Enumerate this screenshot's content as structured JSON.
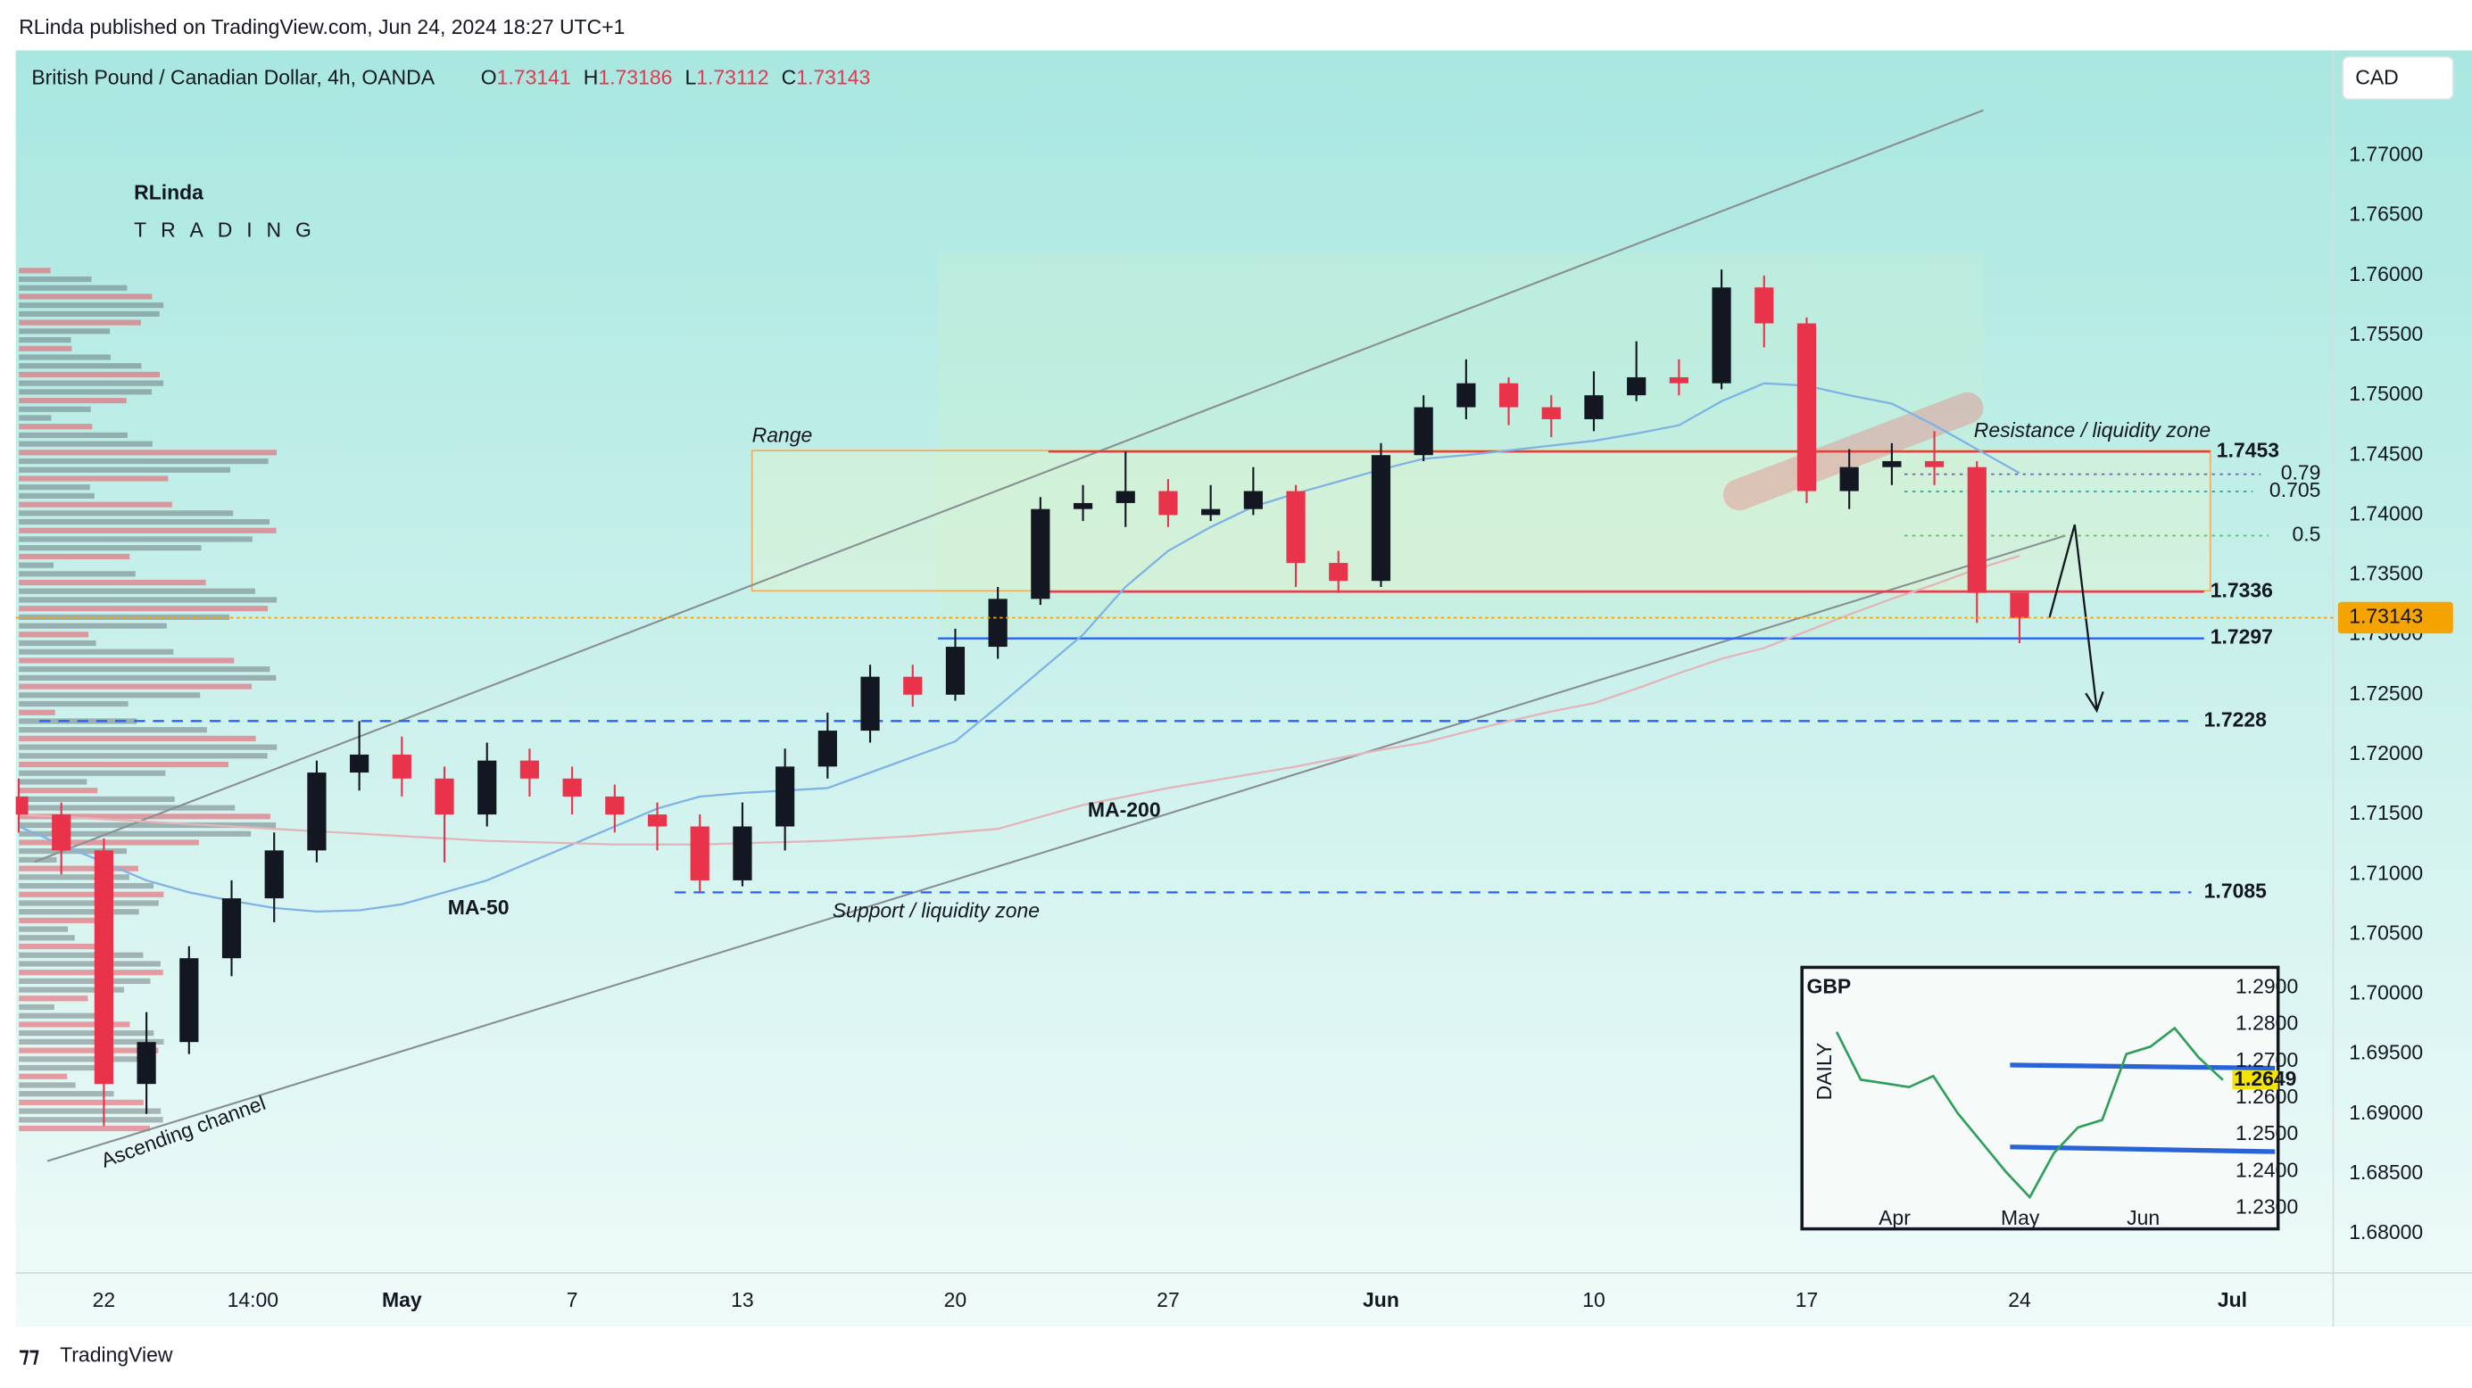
{
  "header": {
    "text": "RLinda published on TradingView.com, Jun 24, 2024 18:27 UTC+1"
  },
  "logo": {
    "name": "RLinda",
    "tagline": "TRADING"
  },
  "footer": {
    "brand": "TradingView"
  },
  "annotations": {
    "range": "Range",
    "resistance": "Resistance / liquidity zone",
    "support": "Support / liquidity zone",
    "channel": "Ascending channel"
  },
  "chart_data": [
    {
      "type": "candlestick",
      "title": "British Pound / Canadian Dollar, 4h, OANDA",
      "currency": "CAD",
      "ohlc_labels": [
        "O",
        "H",
        "L",
        "C"
      ],
      "ohlc": {
        "open": 1.73141,
        "high": 1.73186,
        "low": 1.73112,
        "close": 1.73143
      },
      "up_color": "#131722",
      "down_color": "#e8334a",
      "price_line_color": "#f5a300",
      "x": [
        -2,
        -1,
        0,
        1,
        2,
        3,
        4,
        5,
        6,
        7,
        8,
        9,
        10,
        11,
        12,
        13,
        14,
        15,
        16,
        17,
        18,
        19,
        20,
        21,
        22,
        23,
        24,
        25,
        26,
        27,
        28,
        29,
        30,
        31,
        32,
        33,
        34,
        35,
        36,
        37,
        38,
        39,
        40,
        41,
        42,
        43,
        44,
        45
      ],
      "open": [
        1.7165,
        1.715,
        1.712,
        1.6925,
        1.696,
        1.703,
        1.708,
        1.712,
        1.7185,
        1.72,
        1.718,
        1.715,
        1.7195,
        1.718,
        1.7165,
        1.715,
        1.714,
        1.7095,
        1.714,
        1.719,
        1.722,
        1.7265,
        1.725,
        1.729,
        1.733,
        1.7405,
        1.741,
        1.742,
        1.74,
        1.7405,
        1.742,
        1.736,
        1.7345,
        1.745,
        1.749,
        1.751,
        1.749,
        1.748,
        1.75,
        1.7515,
        1.751,
        1.759,
        1.756,
        1.742,
        1.744,
        1.7445,
        1.744,
        1.7335
      ],
      "high": [
        1.718,
        1.716,
        1.713,
        1.6985,
        1.704,
        1.7095,
        1.7135,
        1.7195,
        1.7228,
        1.7215,
        1.719,
        1.721,
        1.7205,
        1.719,
        1.7175,
        1.716,
        1.715,
        1.716,
        1.7205,
        1.7235,
        1.7275,
        1.7275,
        1.7305,
        1.734,
        1.7415,
        1.7425,
        1.7453,
        1.743,
        1.7425,
        1.744,
        1.7425,
        1.737,
        1.746,
        1.75,
        1.753,
        1.7515,
        1.75,
        1.752,
        1.7545,
        1.753,
        1.7605,
        1.76,
        1.7565,
        1.7455,
        1.746,
        1.747,
        1.7445,
        1.733
      ],
      "low": [
        1.7135,
        1.71,
        1.689,
        1.69,
        1.695,
        1.7015,
        1.706,
        1.711,
        1.717,
        1.7165,
        1.711,
        1.714,
        1.7165,
        1.715,
        1.7135,
        1.712,
        1.7085,
        1.709,
        1.712,
        1.718,
        1.721,
        1.724,
        1.7245,
        1.728,
        1.7325,
        1.7395,
        1.739,
        1.739,
        1.7395,
        1.74,
        1.734,
        1.7335,
        1.734,
        1.7445,
        1.748,
        1.7475,
        1.7465,
        1.747,
        1.7495,
        1.75,
        1.7505,
        1.754,
        1.741,
        1.7405,
        1.7425,
        1.7425,
        1.731,
        1.7293
      ],
      "close": [
        1.715,
        1.712,
        1.6925,
        1.696,
        1.703,
        1.708,
        1.712,
        1.7185,
        1.72,
        1.718,
        1.715,
        1.7195,
        1.718,
        1.7165,
        1.715,
        1.714,
        1.7095,
        1.714,
        1.719,
        1.722,
        1.7265,
        1.725,
        1.729,
        1.733,
        1.7405,
        1.741,
        1.742,
        1.74,
        1.7405,
        1.742,
        1.736,
        1.7345,
        1.745,
        1.749,
        1.751,
        1.749,
        1.748,
        1.75,
        1.7515,
        1.751,
        1.759,
        1.756,
        1.742,
        1.744,
        1.7445,
        1.744,
        1.7335,
        1.7314
      ],
      "moving_averages": [
        {
          "name": "MA-50",
          "color": "#7fb3e6",
          "label_color": "#2962ff",
          "values": [
            1.714,
            1.7125,
            1.711,
            1.7095,
            1.7085,
            1.7078,
            1.7072,
            1.7069,
            1.707,
            1.7075,
            1.7085,
            1.7095,
            1.711,
            1.7125,
            1.714,
            1.7155,
            1.7165,
            1.7168,
            1.717,
            1.7172,
            1.7185,
            1.7198,
            1.7211,
            1.724,
            1.727,
            1.73,
            1.734,
            1.737,
            1.739,
            1.7407,
            1.7418,
            1.7428,
            1.7438,
            1.7447,
            1.745,
            1.7454,
            1.7458,
            1.7462,
            1.7468,
            1.7475,
            1.7495,
            1.751,
            1.7508,
            1.75,
            1.7493,
            1.7475,
            1.7455,
            1.7435
          ]
        },
        {
          "name": "MA-200",
          "color": "#e3b5b9",
          "label_color": "#e53950",
          "values": [
            1.715,
            1.7148,
            1.7146,
            1.7144,
            1.7142,
            1.714,
            1.7138,
            1.7136,
            1.7134,
            1.7132,
            1.713,
            1.7128,
            1.7127,
            1.7126,
            1.7125,
            1.7125,
            1.7125,
            1.7126,
            1.7127,
            1.7128,
            1.713,
            1.7132,
            1.7135,
            1.7138,
            1.7148,
            1.7158,
            1.7165,
            1.7172,
            1.7178,
            1.7184,
            1.719,
            1.7197,
            1.7204,
            1.721,
            1.7219,
            1.7228,
            1.7236,
            1.7243,
            1.7255,
            1.7268,
            1.728,
            1.7289,
            1.7303,
            1.7317,
            1.733,
            1.7342,
            1.7355,
            1.7366
          ]
        }
      ],
      "levels": [
        {
          "value": 1.7453,
          "color": "#e53950",
          "dashed": false
        },
        {
          "value": 1.7336,
          "color": "#e53950",
          "dashed": false
        },
        {
          "value": 1.7297,
          "color": "#2962ff",
          "dashed": false
        },
        {
          "value": 1.7228,
          "color": "#2962ff",
          "dashed": true
        },
        {
          "value": 1.7085,
          "color": "#2962ff",
          "dashed": true
        }
      ],
      "fib_levels": [
        {
          "value": 0.79,
          "color": "#7e57c2"
        },
        {
          "value": 0.705,
          "color": "#26a69a"
        },
        {
          "value": 0.5,
          "color": "#66bb6a"
        }
      ],
      "xlim": [
        -2.07,
        52.37
      ],
      "xticks": [
        {
          "value": 0,
          "label": "22"
        },
        {
          "value": 3.5,
          "label": "14:00"
        },
        {
          "value": 7,
          "label": "May"
        },
        {
          "value": 11,
          "label": "7"
        },
        {
          "value": 15,
          "label": "13"
        },
        {
          "value": 20,
          "label": "20"
        },
        {
          "value": 25,
          "label": "27"
        },
        {
          "value": 30,
          "label": "Jun"
        },
        {
          "value": 35,
          "label": "10"
        },
        {
          "value": 40,
          "label": "17"
        },
        {
          "value": 45,
          "label": "24"
        },
        {
          "value": 50,
          "label": "Jul"
        }
      ],
      "ylim": [
        1.67672,
        1.77879
      ],
      "yticks": [
        {
          "value": 1.68,
          "label": "1.68000"
        },
        {
          "value": 1.685,
          "label": "1.68500"
        },
        {
          "value": 1.69,
          "label": "1.69000"
        },
        {
          "value": 1.695,
          "label": "1.69500"
        },
        {
          "value": 1.7,
          "label": "1.70000"
        },
        {
          "value": 1.705,
          "label": "1.70500"
        },
        {
          "value": 1.71,
          "label": "1.71000"
        },
        {
          "value": 1.715,
          "label": "1.71500"
        },
        {
          "value": 1.72,
          "label": "1.72000"
        },
        {
          "value": 1.725,
          "label": "1.72500"
        },
        {
          "value": 1.73,
          "label": "1.73000"
        },
        {
          "value": 1.735,
          "label": "1.73500"
        },
        {
          "value": 1.74,
          "label": "1.74000"
        },
        {
          "value": 1.745,
          "label": "1.74500"
        },
        {
          "value": 1.75,
          "label": "1.75000"
        },
        {
          "value": 1.755,
          "label": "1.75500"
        },
        {
          "value": 1.76,
          "label": "1.76000"
        },
        {
          "value": 1.765,
          "label": "1.76500"
        },
        {
          "value": 1.77,
          "label": "1.77000"
        }
      ]
    },
    {
      "type": "line",
      "title": "GBP",
      "y_label": "DAILY",
      "color": "#2e9e5b",
      "values": [
        1.278,
        1.265,
        1.264,
        1.263,
        1.266,
        1.256,
        1.248,
        1.24,
        1.233,
        1.245,
        1.252,
        1.254,
        1.272,
        1.274,
        1.279,
        1.271,
        1.2649
      ],
      "xlim": [
        0,
        16
      ],
      "xticks": [
        {
          "value": 2.4,
          "label": "Apr"
        },
        {
          "value": 7.6,
          "label": "May"
        },
        {
          "value": 12.7,
          "label": "Jun"
        }
      ],
      "ylim": [
        1.2244,
        1.2947
      ],
      "yticks": [
        {
          "value": 1.29,
          "label": "1.2900"
        },
        {
          "value": 1.28,
          "label": "1.2800"
        },
        {
          "value": 1.27,
          "label": "1.2700"
        },
        {
          "value": 1.26,
          "label": "1.2600"
        },
        {
          "value": 1.25,
          "label": "1.2500"
        },
        {
          "value": 1.24,
          "label": "1.2400"
        },
        {
          "value": 1.23,
          "label": "1.2300"
        }
      ]
    }
  ]
}
